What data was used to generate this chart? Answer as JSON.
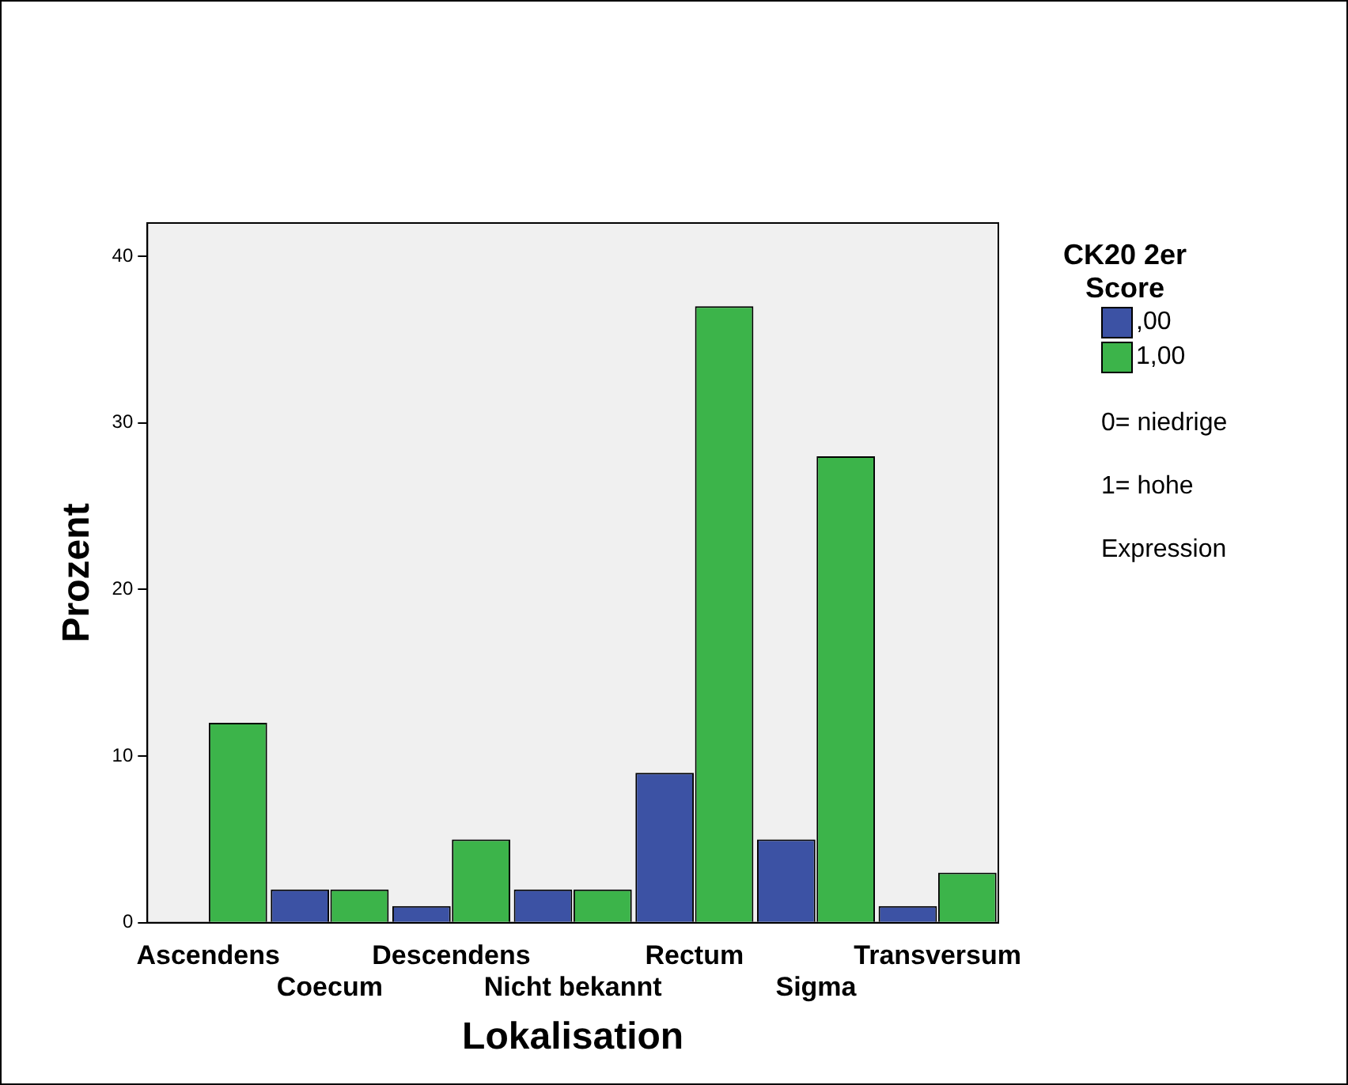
{
  "chart_data": {
    "type": "bar",
    "xlabel": "Lokalisation",
    "ylabel": "Prozent",
    "legend_title": "CK20 2er Score",
    "categories": [
      "Ascendens",
      "Coecum",
      "Descendens",
      "Nicht bekannt",
      "Rectum",
      "Sigma",
      "Transversum"
    ],
    "series": [
      {
        "name": ",00",
        "color": "#3c52a4",
        "values": [
          0,
          2,
          1,
          2,
          9,
          5,
          1
        ]
      },
      {
        "name": "1,00",
        "color": "#3cb44a",
        "values": [
          12,
          2,
          5,
          2,
          37,
          28,
          3
        ]
      }
    ],
    "ylim": [
      0,
      42
    ],
    "yticks": [
      0,
      10,
      20,
      30,
      40
    ],
    "grid": false,
    "legend": "right",
    "annotations": [
      "0= niedrige",
      "1= hohe",
      "Expression"
    ]
  }
}
